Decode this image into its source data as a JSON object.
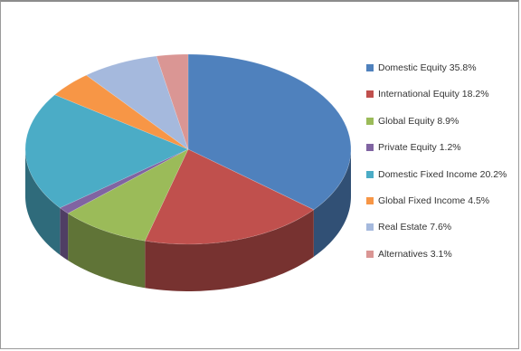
{
  "chart_data": {
    "type": "pie",
    "style": "3d",
    "legend_position": "right",
    "title": "",
    "slices": [
      {
        "label": "Domestic Equity 35.8%",
        "name": "Domestic Equity",
        "value": 35.8,
        "color": "#4f81bd"
      },
      {
        "label": "International Equity 18.2%",
        "name": "International Equity",
        "value": 18.2,
        "color": "#c0504d"
      },
      {
        "label": "Global Equity 8.9%",
        "name": "Global Equity",
        "value": 8.9,
        "color": "#9bbb59"
      },
      {
        "label": "Private Equity 1.2%",
        "name": "Private Equity",
        "value": 1.2,
        "color": "#8064a2"
      },
      {
        "label": "Domestic Fixed Income 20.2%",
        "name": "Domestic Fixed Income",
        "value": 20.2,
        "color": "#4bacc6"
      },
      {
        "label": "Global Fixed Income 4.5%",
        "name": "Global Fixed Income",
        "value": 4.5,
        "color": "#f79646"
      },
      {
        "label": "Real Estate 7.6%",
        "name": "Real Estate",
        "value": 7.6,
        "color": "#a5b9dd"
      },
      {
        "label": "Alternatives 3.1%",
        "name": "Alternatives",
        "value": 3.1,
        "color": "#da9694"
      }
    ]
  }
}
